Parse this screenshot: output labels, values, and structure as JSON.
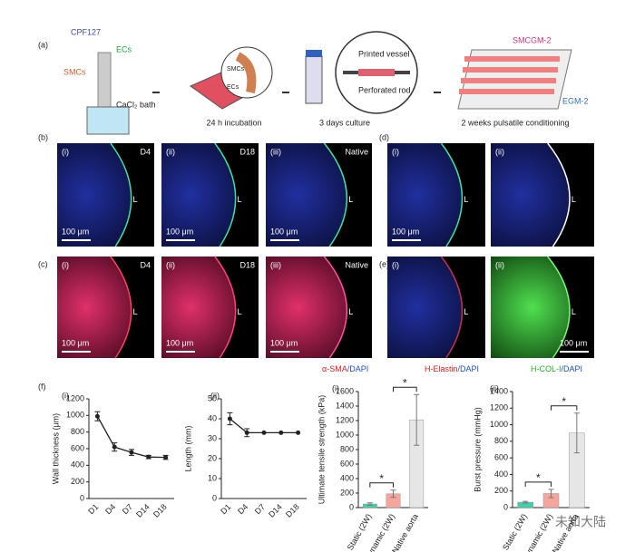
{
  "panel_a": {
    "label": "(a)",
    "cpf": "CPF127",
    "ecs": "ECs",
    "smcs": "SMCs",
    "bath": "CaCl₂ bath",
    "inset_smcs": "SMCs",
    "inset_ecs": "ECs",
    "step1": "24 h incubation",
    "printed": "Printed vessel",
    "rod": "Perforated rod",
    "step2": "3 days culture",
    "medium_top": "SMCGM-2",
    "medium_side": "EGM-2",
    "step3": "2 weeks pulsatile conditioning"
  },
  "panel_b": {
    "label": "(b)",
    "images": [
      {
        "index": "(i)",
        "tag": "D4",
        "lumen": "L",
        "scale": "100 μm"
      },
      {
        "index": "(ii)",
        "tag": "D18",
        "lumen": "L",
        "scale": "100 μm"
      },
      {
        "index": "(iii)",
        "tag": "Native",
        "lumen": "L",
        "scale": "100 μm"
      }
    ]
  },
  "panel_c": {
    "label": "(c)",
    "images": [
      {
        "index": "(i)",
        "tag": "D4",
        "lumen": "L",
        "scale": "100 μm"
      },
      {
        "index": "(ii)",
        "tag": "D18",
        "lumen": "L",
        "scale": "100 μm"
      },
      {
        "index": "(iii)",
        "tag": "Native",
        "lumen": "L",
        "scale": "100 μm"
      }
    ],
    "stain": "α-SMA",
    "counter": "/DAPI"
  },
  "panel_d": {
    "label": "(d)",
    "images": [
      {
        "index": "(i)",
        "lumen": "L",
        "scale": "100 μm"
      },
      {
        "index": "(ii)",
        "lumen": "L"
      }
    ],
    "stain": "H-Elastin",
    "counter": "/DAPI"
  },
  "panel_e": {
    "label": "(e)",
    "images": [
      {
        "index": "(i)",
        "lumen": "L"
      },
      {
        "index": "(ii)",
        "lumen": "L",
        "scale": "100 μm"
      }
    ],
    "stain": "H-COL-I",
    "counter": "/DAPI"
  },
  "panel_f": {
    "label": "(f)"
  },
  "watermark": "未知大陆",
  "chart_data": [
    {
      "type": "line",
      "label": "(i)",
      "ylabel": "Wall thickness (μm)",
      "categories": [
        "D1",
        "D4",
        "D7",
        "D14",
        "D18"
      ],
      "values": [
        990,
        620,
        555,
        500,
        495
      ],
      "errors": [
        55,
        50,
        35,
        20,
        25
      ],
      "color": "#222222",
      "ylim": [
        0,
        1200
      ],
      "yticks": [
        0,
        200,
        400,
        600,
        800,
        1000,
        1200
      ]
    },
    {
      "type": "line",
      "label": "(ii)",
      "ylabel": "Length (mm)",
      "categories": [
        "D1",
        "D4",
        "D7",
        "D14",
        "D18"
      ],
      "values": [
        40,
        33,
        33,
        33,
        33
      ],
      "errors": [
        3,
        2,
        0,
        0,
        0
      ],
      "color": "#222222",
      "ylim": [
        0,
        50
      ],
      "yticks": [
        0,
        10,
        20,
        30,
        40,
        50
      ]
    },
    {
      "type": "bar",
      "label": "(i)",
      "ylabel": "Ultimate tensile strength (kPa)",
      "categories": [
        "Static (2W)",
        "Dynamic (2W)",
        "Native aorta"
      ],
      "values": [
        50,
        190,
        1210
      ],
      "errors": [
        15,
        50,
        350
      ],
      "colors": [
        "#3fcfa9",
        "#f5a59c",
        "#e6e6e6"
      ],
      "ylim": [
        0,
        1600
      ],
      "yticks": [
        0,
        200,
        400,
        600,
        800,
        1000,
        1200,
        1400,
        1600
      ],
      "significance": [
        {
          "text": "*",
          "between": [
            0,
            1
          ]
        },
        {
          "text": "*",
          "between": [
            1,
            2
          ]
        }
      ]
    },
    {
      "type": "bar",
      "label": "(ii)",
      "ylabel": "Burst pressure (mmHg)",
      "categories": [
        "Static (2W)",
        "Dynamic (2W)",
        "Native aorta"
      ],
      "values": [
        65,
        170,
        900
      ],
      "errors": [
        10,
        50,
        240
      ],
      "colors": [
        "#3fcfa9",
        "#f5a59c",
        "#e6e6e6"
      ],
      "ylim": [
        0,
        1400
      ],
      "yticks": [
        0,
        200,
        400,
        600,
        800,
        1000,
        1200,
        1400
      ],
      "significance": [
        {
          "text": "*",
          "between": [
            0,
            1
          ]
        },
        {
          "text": "*",
          "between": [
            1,
            2
          ]
        }
      ]
    }
  ]
}
